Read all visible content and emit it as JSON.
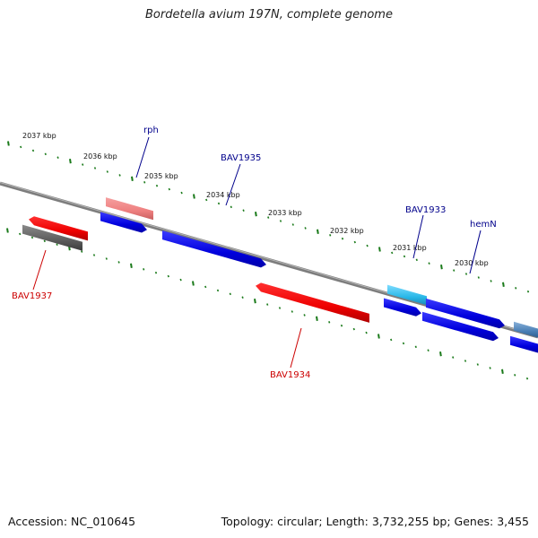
{
  "title": "Bordetella avium 197N, complete genome",
  "footer": {
    "accession": "Accession: NC_010645",
    "summary": "Topology: circular; Length: 3,732,255 bp; Genes: 3,455"
  },
  "colors": {
    "background": "#ffffff",
    "backbone": "#808080",
    "tick": "#1a7a1a",
    "gene_label_forward": "#00008b",
    "gene_label_reverse": "#cc0000",
    "cds_forward": "#0000ee",
    "cds_reverse": "#ee0000",
    "rna_forward": "#29b8e8",
    "rna_reverse": "#ee8888",
    "pseudo_forward": "#4a7fb5",
    "pseudo_reverse": "#666666"
  },
  "tick_labels": [
    "2037 kbp",
    "2036 kbp",
    "2035 kbp",
    "2034 kbp",
    "2033 kbp",
    "2032 kbp",
    "2031 kbp",
    "2030 kbp"
  ],
  "genes": [
    {
      "id": "BAV1937",
      "label": "BAV1937",
      "strand": "reverse",
      "type": "cds"
    },
    {
      "id": "bav-gray-1",
      "label": "",
      "strand": "reverse",
      "type": "pseudo"
    },
    {
      "id": "rph",
      "label": "rph",
      "strand": "forward",
      "type": "cds"
    },
    {
      "id": "rph-rna",
      "label": "",
      "strand": "forward",
      "type": "rna"
    },
    {
      "id": "BAV1935",
      "label": "BAV1935",
      "strand": "forward",
      "type": "cds"
    },
    {
      "id": "BAV1934",
      "label": "BAV1934",
      "strand": "reverse",
      "type": "cds"
    },
    {
      "id": "BAV1933",
      "label": "BAV1933",
      "strand": "forward",
      "type": "rna"
    },
    {
      "id": "bav1933-cds",
      "label": "",
      "strand": "forward",
      "type": "cds"
    },
    {
      "id": "hemN",
      "label": "hemN",
      "strand": "forward",
      "type": "cds"
    },
    {
      "id": "hemN-2",
      "label": "",
      "strand": "forward",
      "type": "cds"
    },
    {
      "id": "edge-1",
      "label": "",
      "strand": "forward",
      "type": "pseudo"
    },
    {
      "id": "edge-2",
      "label": "",
      "strand": "forward",
      "type": "cds"
    }
  ]
}
